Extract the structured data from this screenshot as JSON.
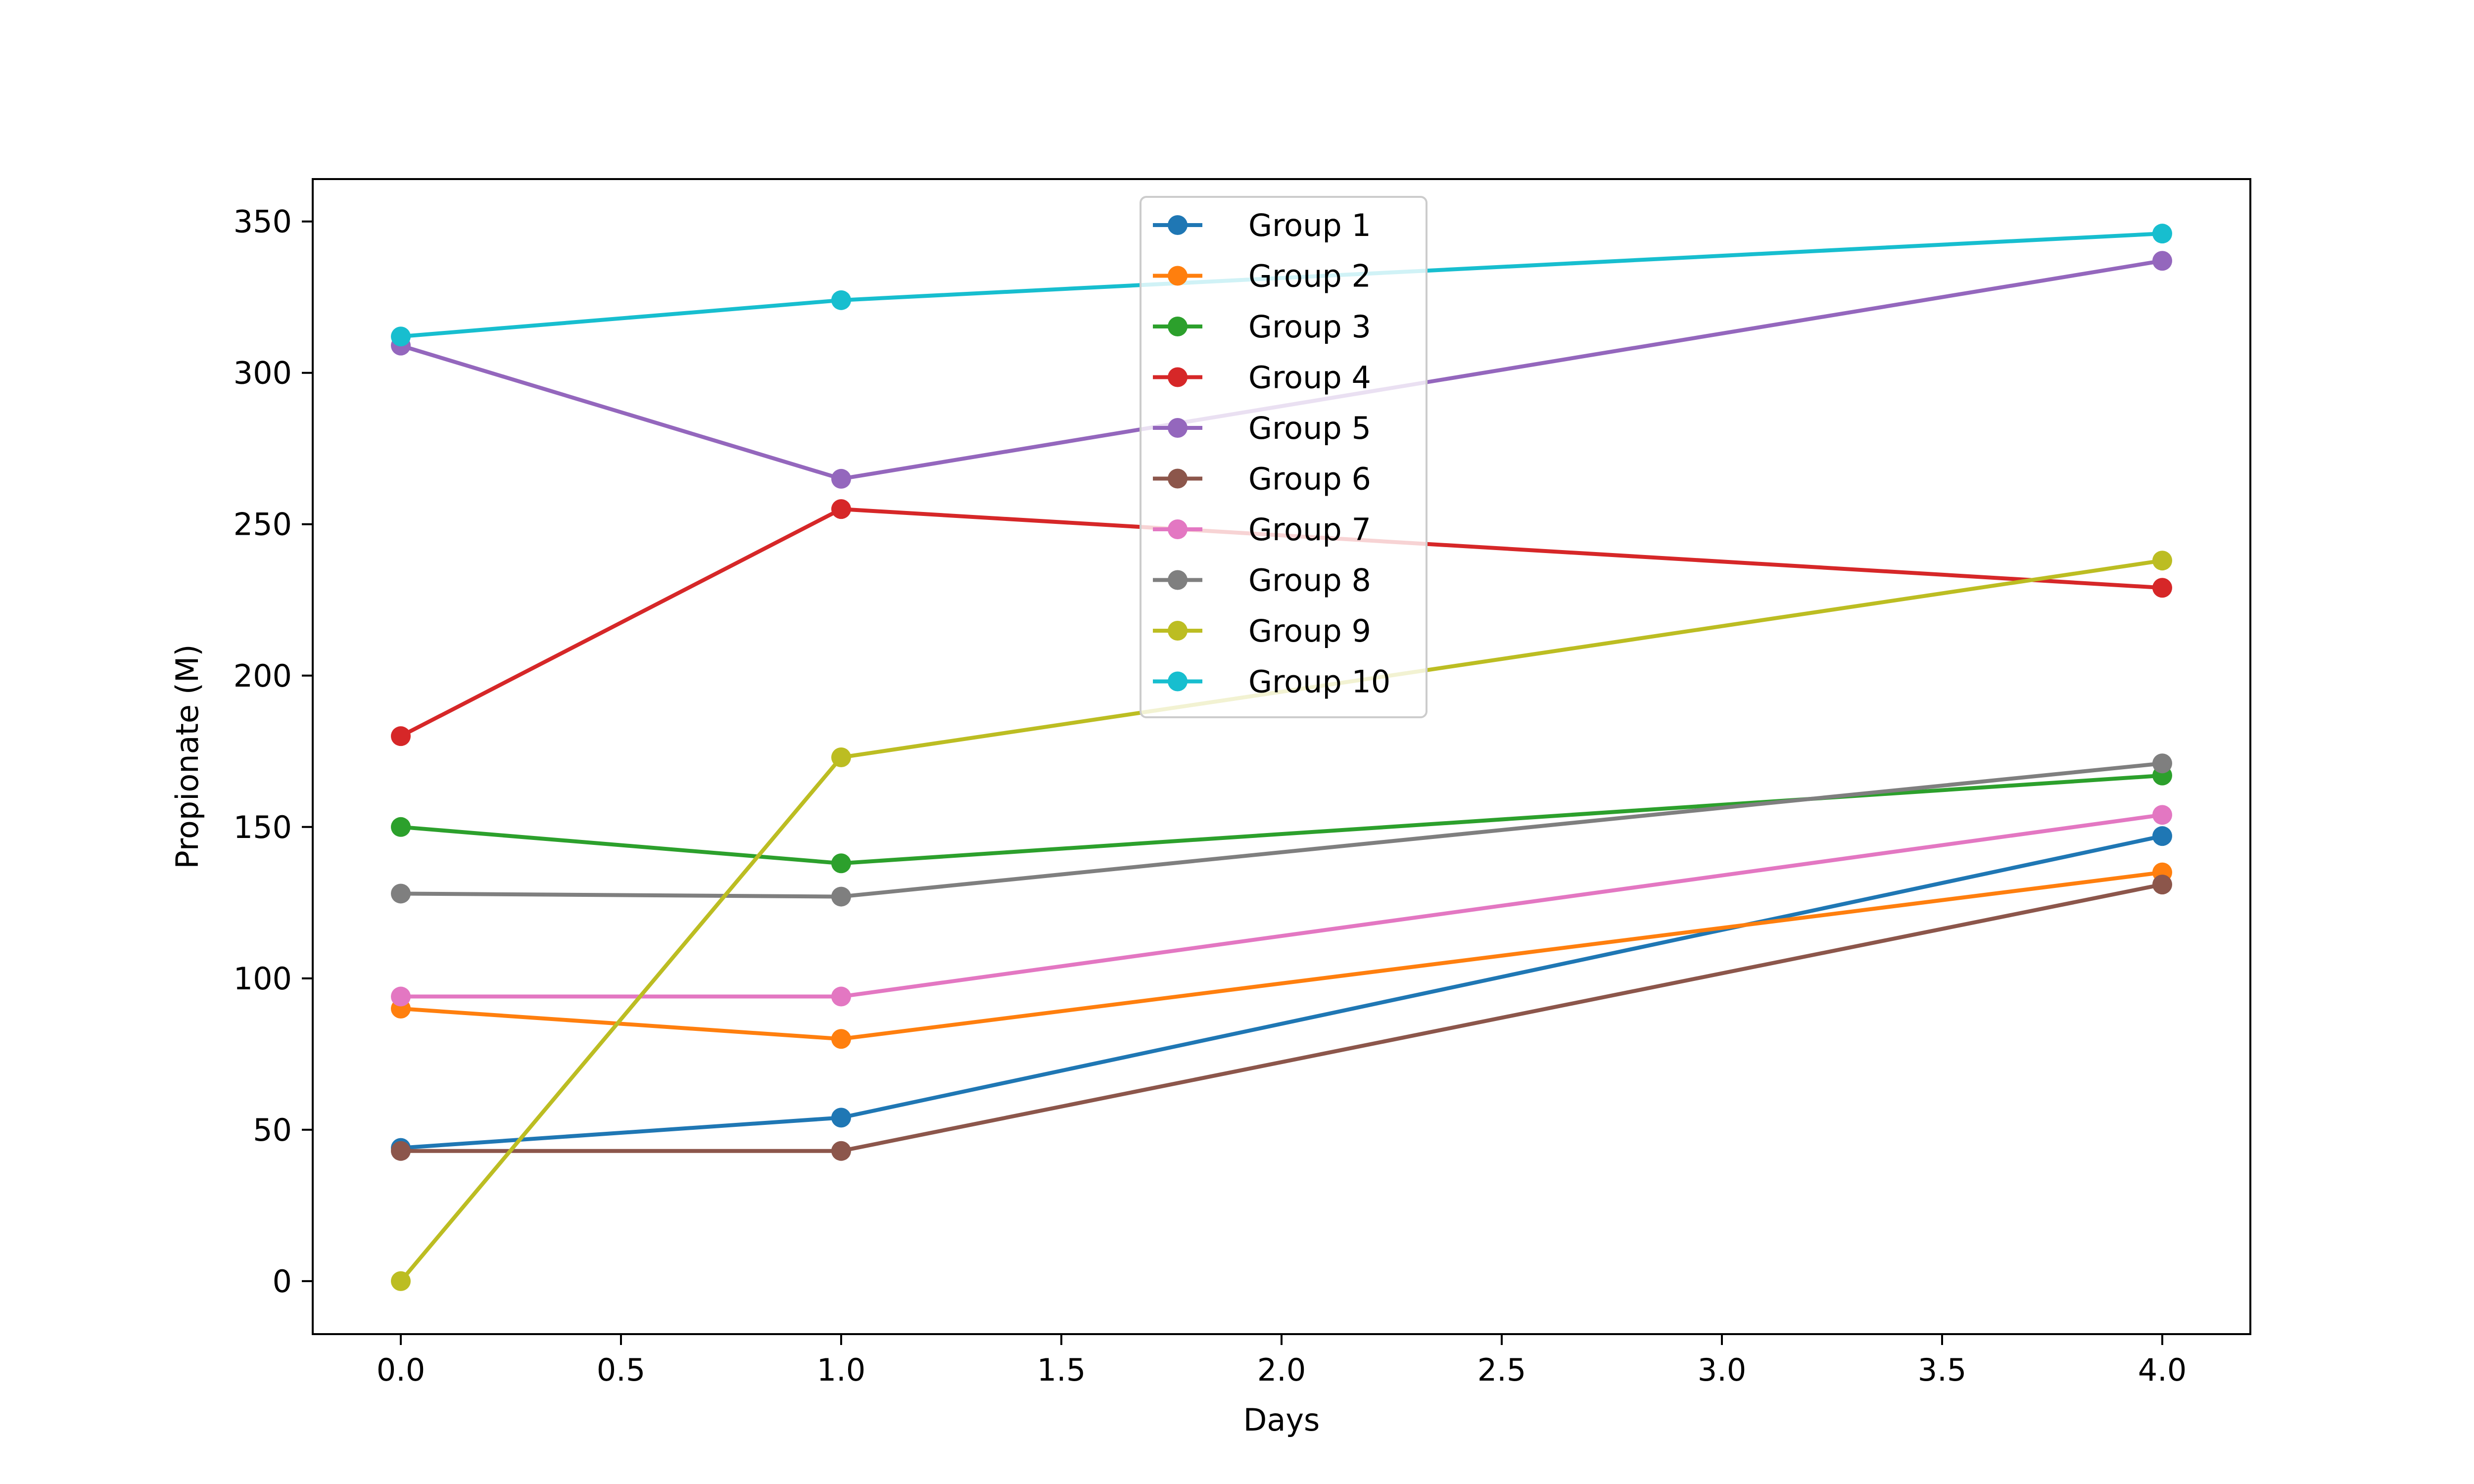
{
  "chart_data": {
    "type": "line",
    "title": "",
    "xlabel": "Days",
    "ylabel": "Propionate (M)",
    "xlim": [
      -0.2,
      4.2
    ],
    "ylim": [
      -17.5,
      364
    ],
    "x_ticks": [
      0.0,
      0.5,
      1.0,
      1.5,
      2.0,
      2.5,
      3.0,
      3.5,
      4.0
    ],
    "x_tick_labels": [
      "0.0",
      "0.5",
      "1.0",
      "1.5",
      "2.0",
      "2.5",
      "3.0",
      "3.5",
      "4.0"
    ],
    "y_ticks": [
      0,
      50,
      100,
      150,
      200,
      250,
      300,
      350
    ],
    "y_tick_labels": [
      "0",
      "50",
      "100",
      "150",
      "200",
      "250",
      "300",
      "350"
    ],
    "grid": false,
    "legend": "upper-center",
    "x": [
      0,
      1,
      4
    ],
    "series": [
      {
        "name": "Group 1",
        "color": "#1f77b4",
        "values": [
          44,
          54,
          147
        ]
      },
      {
        "name": "Group 2",
        "color": "#ff7f0e",
        "values": [
          90,
          80,
          135
        ]
      },
      {
        "name": "Group 3",
        "color": "#2ca02c",
        "values": [
          150,
          138,
          167
        ]
      },
      {
        "name": "Group 4",
        "color": "#d62728",
        "values": [
          180,
          255,
          229
        ]
      },
      {
        "name": "Group 5",
        "color": "#9467bd",
        "values": [
          309,
          265,
          337
        ]
      },
      {
        "name": "Group 6",
        "color": "#8c564b",
        "values": [
          43,
          43,
          131
        ]
      },
      {
        "name": "Group 7",
        "color": "#e377c2",
        "values": [
          94,
          94,
          154
        ]
      },
      {
        "name": "Group 8",
        "color": "#7f7f7f",
        "values": [
          128,
          127,
          171
        ]
      },
      {
        "name": "Group 9",
        "color": "#bcbd22",
        "values": [
          0,
          173,
          238
        ]
      },
      {
        "name": "Group 10",
        "color": "#17becf",
        "values": [
          312,
          324,
          346
        ]
      }
    ]
  }
}
